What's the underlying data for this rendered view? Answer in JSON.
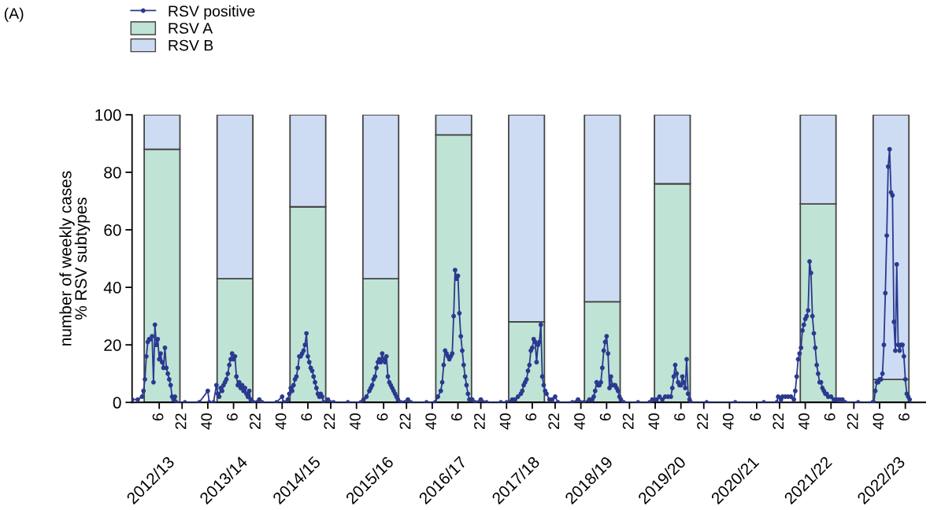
{
  "chart_data": {
    "type": "bar",
    "stacked": true,
    "title": "(A)",
    "ylabel": "number of weekly cases\n% RSV subtypes",
    "xlim": [
      "2012-09-24",
      "2023-05-15"
    ],
    "xticks": [
      {
        "value": "2013-02-04",
        "label": "6"
      },
      {
        "value": "2013-05-27",
        "label": "22"
      },
      {
        "value": "2013-09-30",
        "label": "40"
      },
      {
        "value": "2014-02-03",
        "label": "6"
      },
      {
        "value": "2014-05-26",
        "label": "22"
      },
      {
        "value": "2014-09-29",
        "label": "40"
      },
      {
        "value": "2015-02-02",
        "label": "6"
      },
      {
        "value": "2015-05-25",
        "label": "22"
      },
      {
        "value": "2015-09-28",
        "label": "40"
      },
      {
        "value": "2016-02-08",
        "label": "6"
      },
      {
        "value": "2016-05-30",
        "label": "22"
      },
      {
        "value": "2016-10-03",
        "label": "40"
      },
      {
        "value": "2017-02-06",
        "label": "6"
      },
      {
        "value": "2017-05-29",
        "label": "22"
      },
      {
        "value": "2017-10-02",
        "label": "40"
      },
      {
        "value": "2018-02-05",
        "label": "6"
      },
      {
        "value": "2018-05-28",
        "label": "22"
      },
      {
        "value": "2018-10-01",
        "label": "40"
      },
      {
        "value": "2019-02-04",
        "label": "6"
      },
      {
        "value": "2019-05-27",
        "label": "22"
      },
      {
        "value": "2019-09-30",
        "label": "40"
      },
      {
        "value": "2020-02-03",
        "label": "6"
      },
      {
        "value": "2020-05-25",
        "label": "22"
      },
      {
        "value": "2020-09-28",
        "label": "40"
      },
      {
        "value": "2021-02-08",
        "label": "6"
      },
      {
        "value": "2021-05-31",
        "label": "22"
      },
      {
        "value": "2021-10-04",
        "label": "40"
      },
      {
        "value": "2022-02-07",
        "label": "6"
      },
      {
        "value": "2022-05-30",
        "label": "22"
      },
      {
        "value": "2022-10-03",
        "label": "40"
      },
      {
        "value": "2023-02-06",
        "label": "6"
      }
    ],
    "annotations": [
      "2012/13",
      "2013/14",
      "2014/15",
      "2015/16",
      "2016/17",
      "2017/18",
      "2018/19",
      "2019/20",
      "2020/21",
      "2021/22",
      "2022/23"
    ],
    "ylim": [
      0,
      100
    ],
    "yticks": [
      0,
      20,
      40,
      60,
      80,
      100
    ],
    "grid": false,
    "legend": "top left",
    "series": [
      {
        "name": "RSV positive",
        "type": "line",
        "color": "#2b3990",
        "marker": "circle",
        "line_style": "solid",
        "x": [
          "2012-09-24",
          "2012-10-22",
          "2012-11-12",
          "2012-11-19",
          "2012-11-26",
          "2012-12-03",
          "2012-12-10",
          "2012-12-17",
          "2012-12-24",
          "2012-12-31",
          "2013-01-07",
          "2013-01-14",
          "2013-01-21",
          "2013-01-28",
          "2013-02-04",
          "2013-02-11",
          "2013-02-18",
          "2013-02-25",
          "2013-03-04",
          "2013-03-11",
          "2013-03-18",
          "2013-03-25",
          "2013-04-01",
          "2013-04-08",
          "2013-04-15",
          "2013-04-22",
          "2013-04-29",
          "2013-06-10",
          "2013-08-19",
          "2013-09-30",
          "2013-10-07",
          "2013-10-28",
          "2013-11-11",
          "2013-11-18",
          "2013-11-25",
          "2013-12-02",
          "2013-12-09",
          "2013-12-16",
          "2013-12-23",
          "2013-12-30",
          "2014-01-06",
          "2014-01-13",
          "2014-01-20",
          "2014-01-27",
          "2014-02-03",
          "2014-02-10",
          "2014-02-17",
          "2014-02-24",
          "2014-03-03",
          "2014-03-10",
          "2014-03-17",
          "2014-03-24",
          "2014-03-31",
          "2014-04-07",
          "2014-04-14",
          "2014-04-21",
          "2014-04-28",
          "2014-05-12",
          "2014-06-09",
          "2014-06-23",
          "2014-09-01",
          "2014-09-29",
          "2014-10-06",
          "2014-10-27",
          "2014-11-03",
          "2014-11-10",
          "2014-11-17",
          "2014-11-24",
          "2014-12-01",
          "2014-12-08",
          "2014-12-15",
          "2014-12-22",
          "2014-12-29",
          "2015-01-05",
          "2015-01-12",
          "2015-01-19",
          "2015-01-26",
          "2015-02-02",
          "2015-02-09",
          "2015-02-16",
          "2015-02-23",
          "2015-03-02",
          "2015-03-09",
          "2015-03-16",
          "2015-03-23",
          "2015-03-30",
          "2015-04-06",
          "2015-04-13",
          "2015-04-20",
          "2015-05-11",
          "2015-06-08",
          "2015-08-17",
          "2015-10-19",
          "2015-11-02",
          "2015-11-16",
          "2015-11-30",
          "2015-12-07",
          "2015-12-14",
          "2015-12-21",
          "2015-12-28",
          "2016-01-04",
          "2016-01-11",
          "2016-01-18",
          "2016-01-25",
          "2016-02-01",
          "2016-02-08",
          "2016-02-15",
          "2016-02-22",
          "2016-02-29",
          "2016-03-07",
          "2016-03-14",
          "2016-03-21",
          "2016-03-28",
          "2016-04-04",
          "2016-04-11",
          "2016-04-18",
          "2016-05-02",
          "2016-06-06",
          "2016-06-20",
          "2016-09-05",
          "2016-10-17",
          "2016-10-31",
          "2016-11-14",
          "2016-11-21",
          "2016-11-28",
          "2016-12-05",
          "2016-12-12",
          "2016-12-19",
          "2016-12-26",
          "2017-01-02",
          "2017-01-09",
          "2017-01-16",
          "2017-01-23",
          "2017-01-30",
          "2017-02-06",
          "2017-02-13",
          "2017-02-20",
          "2017-02-27",
          "2017-03-06",
          "2017-03-13",
          "2017-03-20",
          "2017-03-27",
          "2017-04-03",
          "2017-04-17",
          "2017-05-01",
          "2017-05-29",
          "2017-06-26",
          "2017-09-04",
          "2017-10-02",
          "2017-10-30",
          "2017-11-13",
          "2017-11-27",
          "2017-12-11",
          "2017-12-18",
          "2017-12-25",
          "2018-01-01",
          "2018-01-08",
          "2018-01-15",
          "2018-01-22",
          "2018-01-29",
          "2018-02-05",
          "2018-02-12",
          "2018-02-19",
          "2018-02-26",
          "2018-03-05",
          "2018-03-12",
          "2018-03-19",
          "2018-03-26",
          "2018-04-02",
          "2018-04-09",
          "2018-04-16",
          "2018-04-30",
          "2018-05-14",
          "2018-05-28",
          "2018-06-11",
          "2018-08-20",
          "2018-09-17",
          "2018-10-15",
          "2018-11-12",
          "2018-11-26",
          "2018-12-03",
          "2018-12-10",
          "2018-12-17",
          "2018-12-24",
          "2018-12-31",
          "2019-01-07",
          "2019-01-14",
          "2019-01-21",
          "2019-01-28",
          "2019-02-04",
          "2019-02-11",
          "2019-02-18",
          "2019-02-25",
          "2019-03-04",
          "2019-03-11",
          "2019-03-18",
          "2019-03-25",
          "2019-04-01",
          "2019-04-08",
          "2019-04-15",
          "2019-04-29",
          "2019-07-08",
          "2019-09-02",
          "2019-09-16",
          "2019-10-07",
          "2019-10-21",
          "2019-11-04",
          "2019-11-18",
          "2019-12-02",
          "2019-12-16",
          "2019-12-23",
          "2019-12-30",
          "2020-01-06",
          "2020-01-13",
          "2020-01-20",
          "2020-01-27",
          "2020-02-03",
          "2020-02-10",
          "2020-02-17",
          "2020-02-24",
          "2020-03-02",
          "2020-03-09",
          "2020-03-16",
          "2020-03-23",
          "2020-06-08",
          "2020-10-26",
          "2021-03-15",
          "2021-05-17",
          "2021-05-24",
          "2021-06-07",
          "2021-06-14",
          "2021-06-28",
          "2021-07-12",
          "2021-07-26",
          "2021-08-09",
          "2021-08-16",
          "2021-08-23",
          "2021-08-30",
          "2021-09-06",
          "2021-09-13",
          "2021-09-20",
          "2021-09-27",
          "2021-10-04",
          "2021-10-11",
          "2021-10-18",
          "2021-10-25",
          "2021-11-01",
          "2021-11-08",
          "2021-11-15",
          "2021-11-22",
          "2021-11-29",
          "2021-12-06",
          "2021-12-13",
          "2021-12-20",
          "2021-12-27",
          "2022-01-03",
          "2022-01-10",
          "2022-01-17",
          "2022-01-24",
          "2022-02-07",
          "2022-02-21",
          "2022-03-07",
          "2022-03-21",
          "2022-04-04",
          "2022-04-18",
          "2022-06-20",
          "2022-08-29",
          "2022-09-05",
          "2022-09-12",
          "2022-09-19",
          "2022-09-26",
          "2022-10-03",
          "2022-10-10",
          "2022-10-17",
          "2022-10-24",
          "2022-10-31",
          "2022-11-07",
          "2022-11-14",
          "2022-11-21",
          "2022-11-28",
          "2022-12-05",
          "2022-12-12",
          "2022-12-19",
          "2022-12-26",
          "2023-01-02",
          "2023-01-09",
          "2023-01-16",
          "2023-01-23",
          "2023-01-30",
          "2023-02-06",
          "2023-02-13",
          "2023-02-20",
          "2023-02-27"
        ],
        "values": [
          1,
          1,
          2,
          4,
          8,
          16,
          21,
          22,
          22,
          23,
          7,
          27,
          20,
          22,
          15,
          17,
          14,
          12,
          19,
          12,
          10,
          8,
          6,
          2,
          1,
          2,
          0,
          0,
          0,
          4,
          0,
          0,
          6,
          3,
          2,
          5,
          4,
          6,
          7,
          8,
          10,
          13,
          15,
          17,
          15,
          16,
          9,
          6,
          7,
          5,
          6,
          4,
          5,
          3,
          2,
          4,
          1,
          0,
          1,
          0,
          0,
          2,
          0,
          1,
          3,
          5,
          4,
          6,
          8,
          9,
          12,
          16,
          16,
          17,
          18,
          20,
          24,
          16,
          14,
          12,
          11,
          9,
          7,
          5,
          3,
          2,
          3,
          2,
          0,
          1,
          0,
          0,
          0,
          1,
          2,
          4,
          5,
          6,
          8,
          9,
          12,
          14,
          15,
          14,
          17,
          15,
          14,
          16,
          9,
          7,
          6,
          5,
          4,
          3,
          2,
          1,
          0,
          1,
          0,
          0,
          0,
          2,
          4,
          7,
          13,
          18,
          17,
          16,
          15,
          16,
          17,
          30,
          46,
          43,
          44,
          31,
          23,
          18,
          13,
          9,
          6,
          3,
          1,
          1,
          0,
          1,
          0,
          0,
          0,
          1,
          1,
          2,
          3,
          4,
          6,
          7,
          8,
          11,
          13,
          18,
          19,
          22,
          21,
          14,
          20,
          21,
          27,
          9,
          6,
          4,
          3,
          1,
          1,
          2,
          0,
          0,
          1,
          0,
          1,
          1,
          2,
          4,
          7,
          6,
          6,
          7,
          12,
          18,
          21,
          23,
          17,
          5,
          9,
          6,
          6,
          6,
          5,
          4,
          2,
          1,
          0,
          0,
          0,
          1,
          1,
          2,
          1,
          2,
          2,
          2,
          5,
          9,
          13,
          10,
          7,
          6,
          6,
          9,
          7,
          5,
          15,
          3,
          1,
          0,
          0,
          0,
          0,
          0,
          2,
          1,
          2,
          2,
          2,
          2,
          1,
          4,
          9,
          15,
          17,
          19,
          25,
          27,
          29,
          30,
          32,
          49,
          45,
          30,
          24,
          19,
          13,
          10,
          7,
          7,
          5,
          4,
          3,
          3,
          2,
          2,
          1,
          1,
          1,
          1,
          0,
          0,
          0,
          0,
          4,
          7,
          7,
          8,
          8,
          10,
          20,
          38,
          58,
          82,
          88,
          73,
          72,
          28,
          18,
          48,
          20,
          18,
          20,
          20,
          16,
          8,
          3,
          2,
          1
        ]
      },
      {
        "name": "RSV A",
        "color": "#bfe3d4",
        "x": [
          "2013-02-18",
          "2014-02-10",
          "2015-02-02",
          "2016-01-25",
          "2017-01-16",
          "2018-01-08",
          "2019-01-14",
          "2019-12-23",
          "2021-12-06",
          "2022-11-28"
        ],
        "values": [
          88,
          43,
          68,
          43,
          93,
          28,
          35,
          76,
          69,
          8
        ]
      },
      {
        "name": "RSV B",
        "color": "#cddcf3",
        "x": [
          "2013-02-18",
          "2014-02-10",
          "2015-02-02",
          "2016-01-25",
          "2017-01-16",
          "2018-01-08",
          "2019-01-14",
          "2019-12-23",
          "2021-12-06",
          "2022-11-28"
        ],
        "values": [
          12,
          57,
          32,
          57,
          7,
          72,
          65,
          24,
          31,
          92
        ]
      }
    ]
  }
}
